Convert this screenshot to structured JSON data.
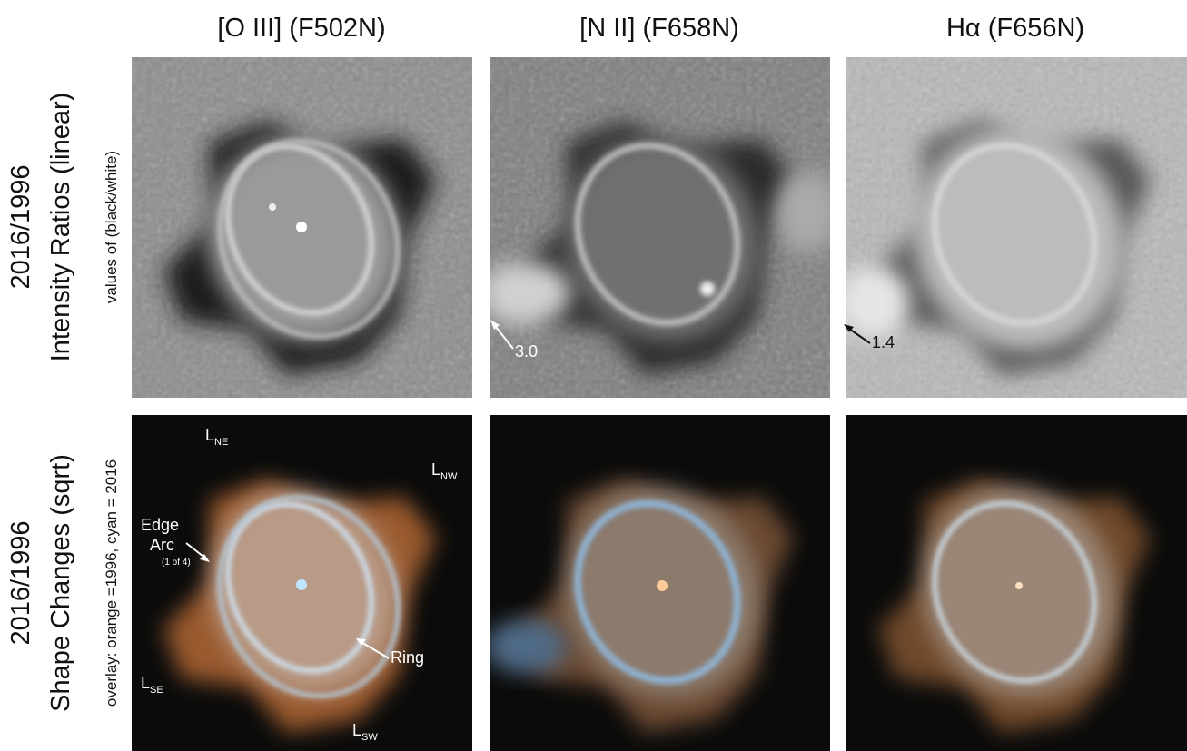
{
  "columns": [
    "[O III] (F502N)",
    "[N II] (F658N)",
    "Hα (F656N)"
  ],
  "rows": [
    {
      "title": "2016/1996",
      "subtitle": "Intensity Ratios (linear)",
      "note": "values of (black/white)"
    },
    {
      "title": "2016/1996",
      "subtitle": "Shape Changes (sqrt)",
      "note": "overlay: orange =1996, cyan = 2016"
    }
  ],
  "annotations": {
    "ratio_nii": "3.0",
    "ratio_ha": "1.4",
    "lobes": [
      {
        "main": "L",
        "sub": "NE"
      },
      {
        "main": "L",
        "sub": "NW"
      },
      {
        "main": "L",
        "sub": "SE"
      },
      {
        "main": "L",
        "sub": "SW"
      }
    ],
    "edge_arc": [
      "Edge",
      "Arc",
      "(1 of 4)"
    ],
    "ring": "Ring"
  }
}
